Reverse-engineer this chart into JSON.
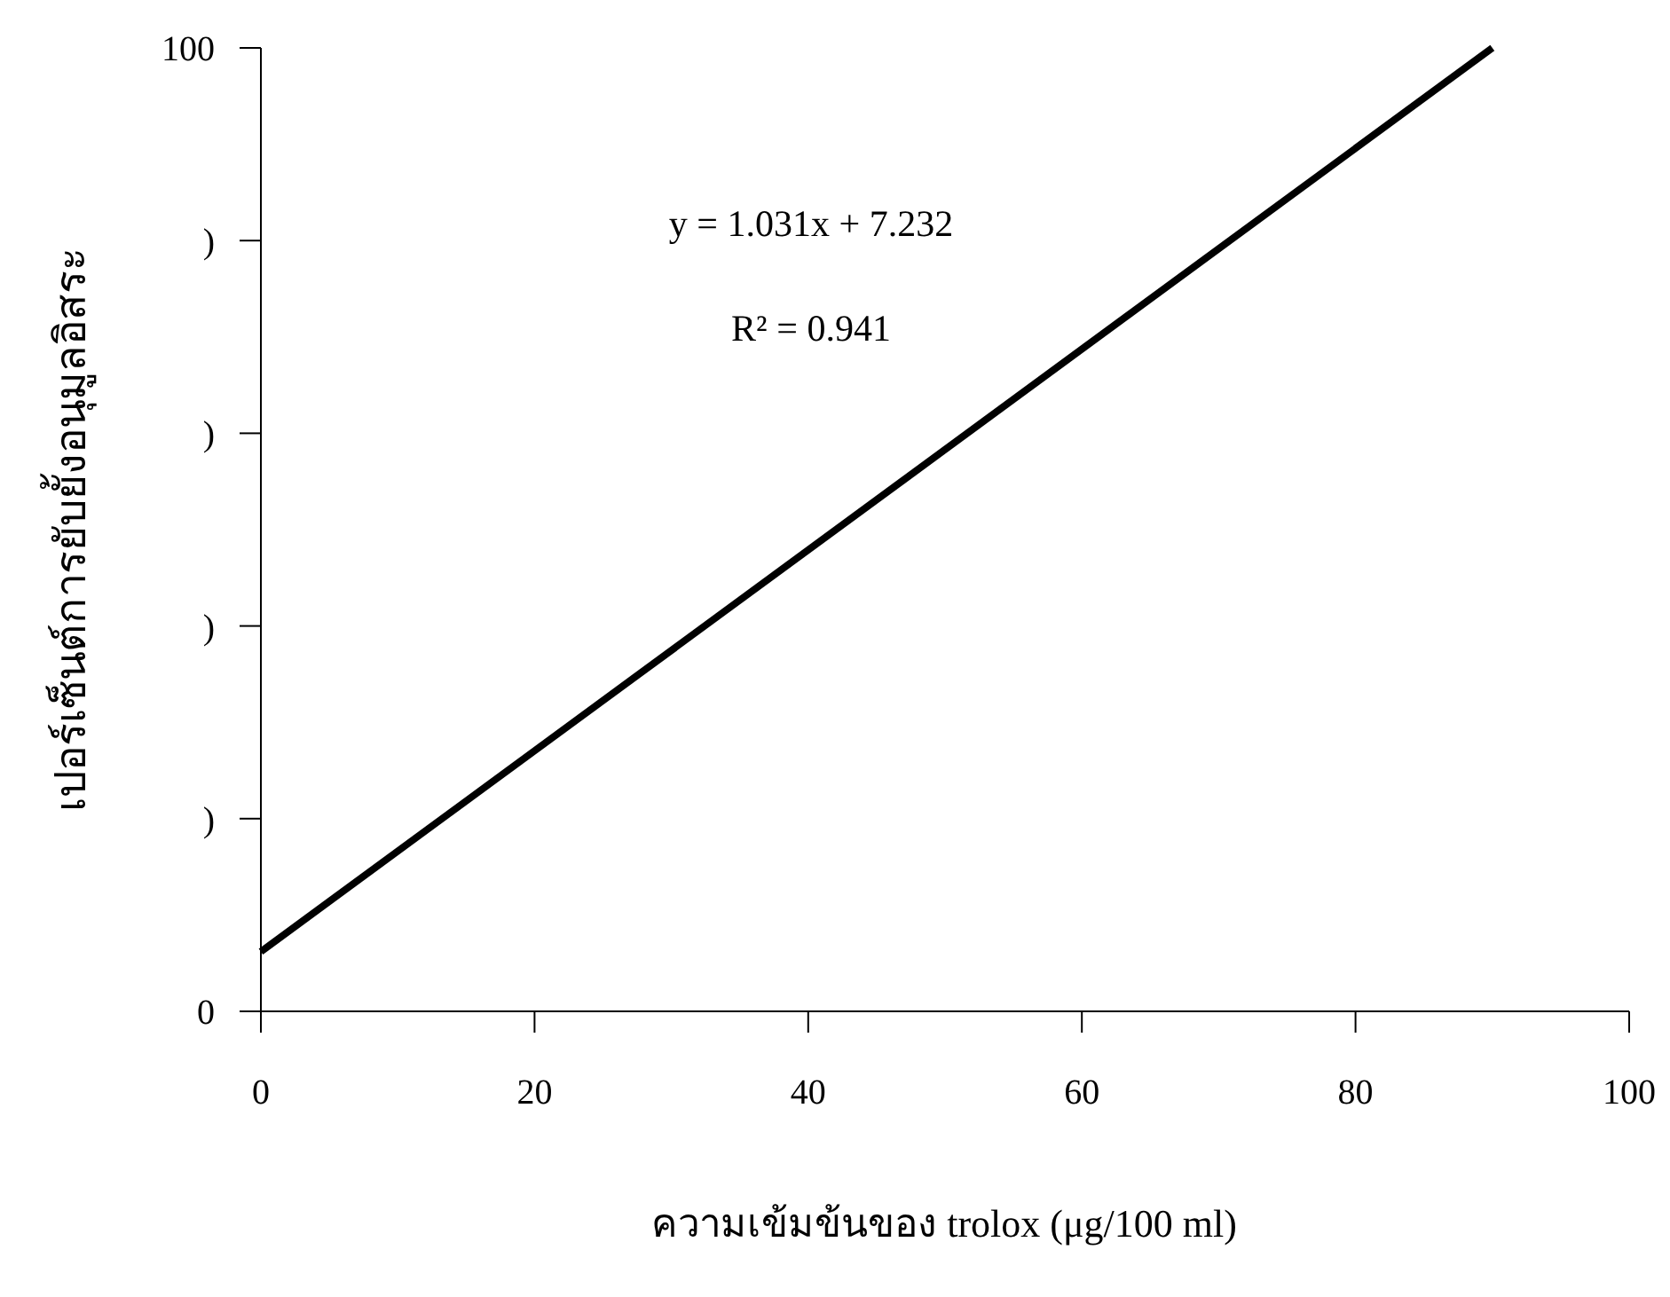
{
  "chart_data": {
    "type": "line",
    "xlabel": "ความเข้มข้นของ trolox  (μg/100 ml)",
    "ylabel": "เปอร์เซ็นต์การยับยั้งอนุมูลอิสระ",
    "series": [
      {
        "color": "#000000",
        "x": [
          0,
          90
        ],
        "values": [
          6.2,
          100
        ]
      }
    ],
    "xlim": [
      0,
      100
    ],
    "xticks": [
      0,
      20,
      40,
      60,
      80,
      100
    ],
    "ylim": [
      0,
      100
    ],
    "yticks": [
      0,
      {
        "value": 20,
        "label": ")"
      },
      {
        "value": 40,
        "label": ")"
      },
      {
        "value": 60,
        "label": ")"
      },
      {
        "value": 80,
        "label": ")"
      },
      100
    ],
    "annotations": [
      "y = 1.031x + 7.232",
      "R² = 0.941"
    ],
    "grid": false,
    "marker": "none",
    "line_style": "solid"
  }
}
